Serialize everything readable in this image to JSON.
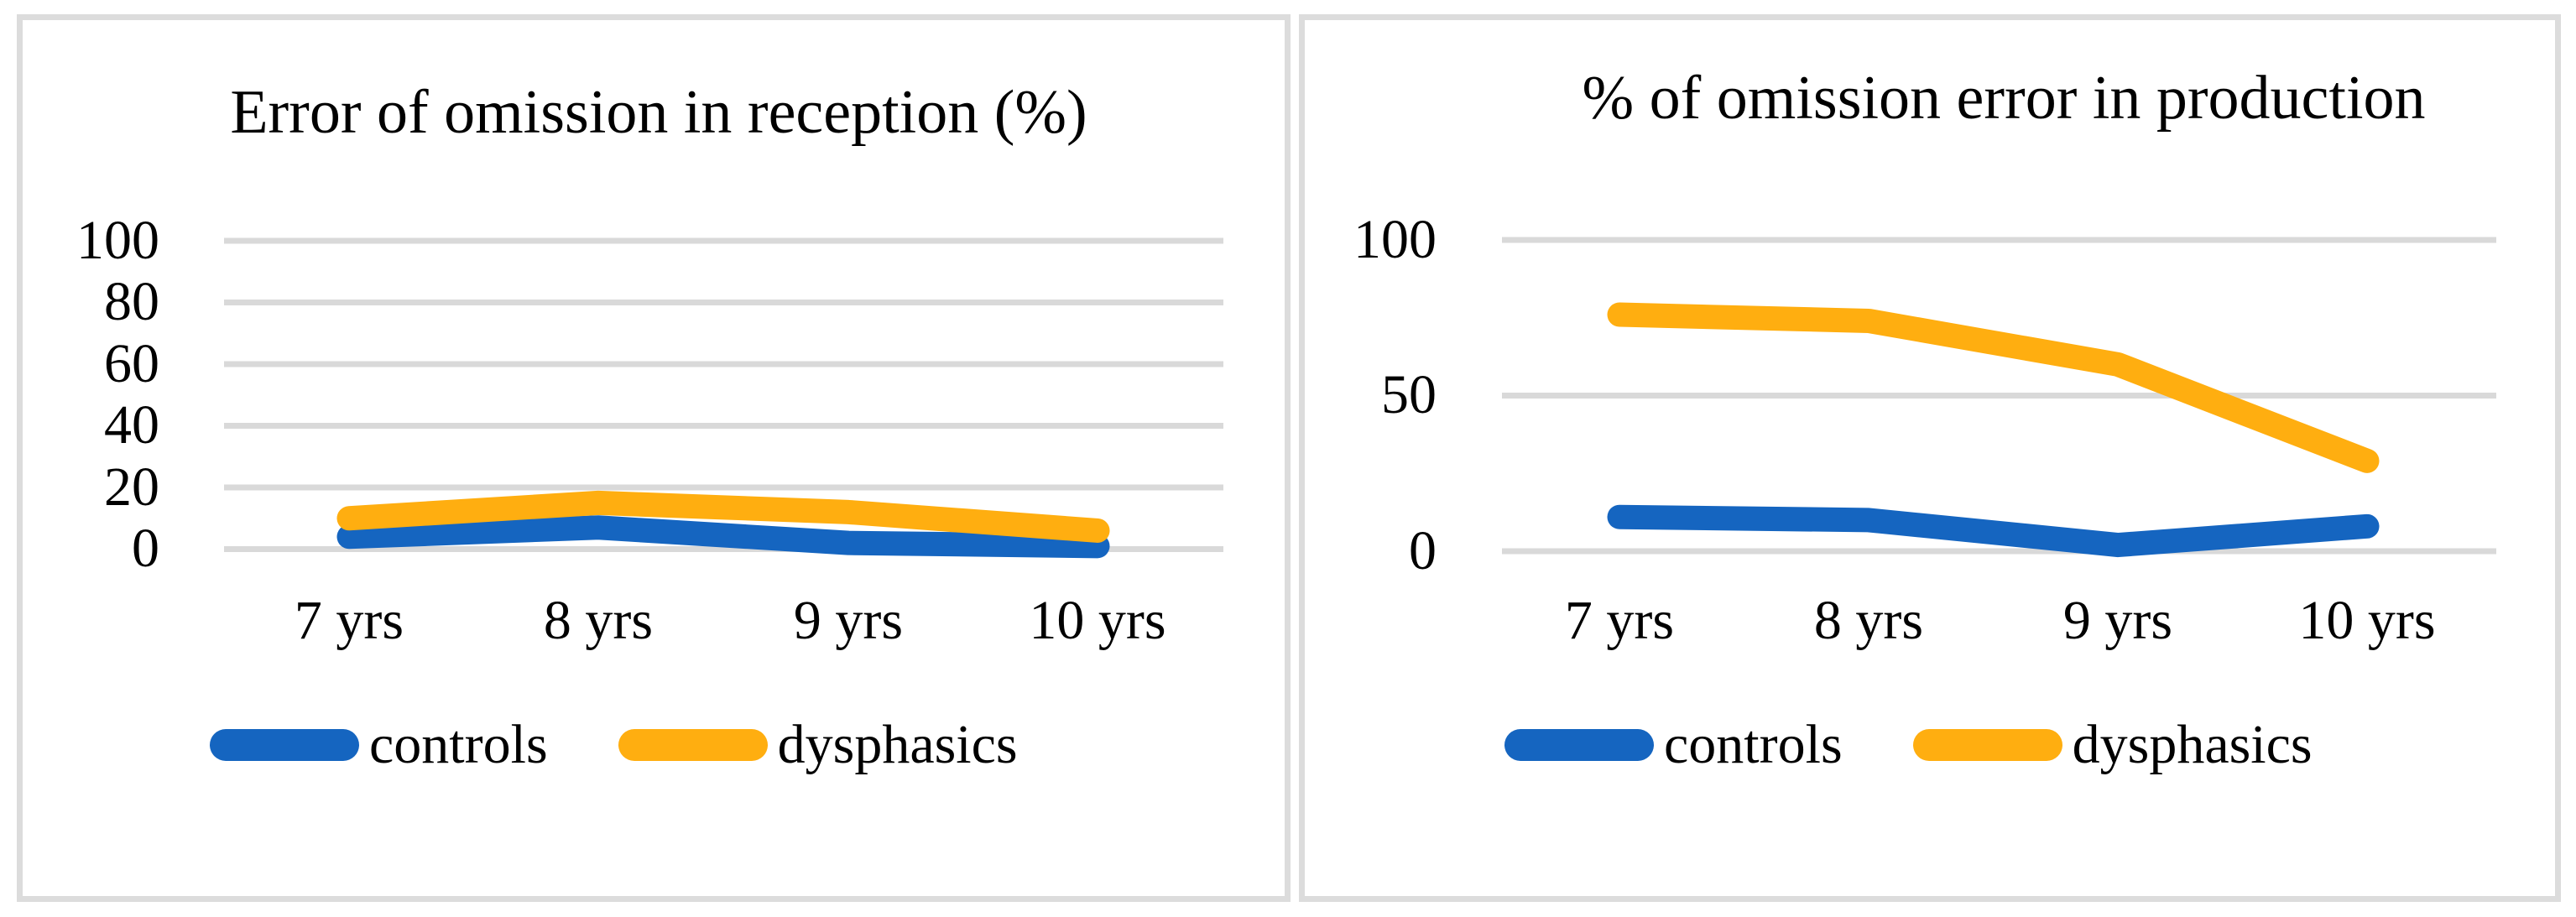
{
  "colors": {
    "controls_line": "#1565C0",
    "dysphasics_line": "#FFAE10",
    "gridline": "#D9D9D9",
    "panel_border": "#DCDCDC",
    "text": "#000000"
  },
  "chart_data": [
    {
      "type": "line",
      "title": "Error of omission in reception (%)",
      "categories": [
        "7 yrs",
        "8 yrs",
        "9 yrs",
        "10 yrs"
      ],
      "series": [
        {
          "name": "controls",
          "color": "#1565C0",
          "values": [
            4,
            7,
            2,
            1
          ]
        },
        {
          "name": "dysphasics",
          "color": "#FFAE10",
          "values": [
            10,
            15,
            12,
            6
          ]
        }
      ],
      "ylim": [
        0,
        100
      ],
      "y_ticks": [
        {
          "label": "100",
          "value": 100
        },
        {
          "label": "80",
          "value": 80
        },
        {
          "label": "60",
          "value": 60
        },
        {
          "label": "40",
          "value": 40
        },
        {
          "label": "20",
          "value": 20
        },
        {
          "label": "0",
          "value": 0
        }
      ],
      "grid": "horizontal",
      "legend_position": "bottom"
    },
    {
      "type": "line",
      "title": "% of omission error in production",
      "categories": [
        "7 yrs",
        "8 yrs",
        "9 yrs",
        "10 yrs"
      ],
      "series": [
        {
          "name": "controls",
          "color": "#1565C0",
          "values": [
            11,
            10,
            2,
            8
          ]
        },
        {
          "name": "dysphasics",
          "color": "#FFAE10",
          "values": [
            76,
            74,
            60,
            29
          ]
        }
      ],
      "ylim": [
        0,
        100
      ],
      "y_ticks": [
        {
          "label": "100",
          "value": 100
        },
        {
          "label": "50",
          "value": 50
        },
        {
          "label": "0",
          "value": 0
        }
      ],
      "grid": "horizontal",
      "legend_position": "bottom"
    }
  ]
}
